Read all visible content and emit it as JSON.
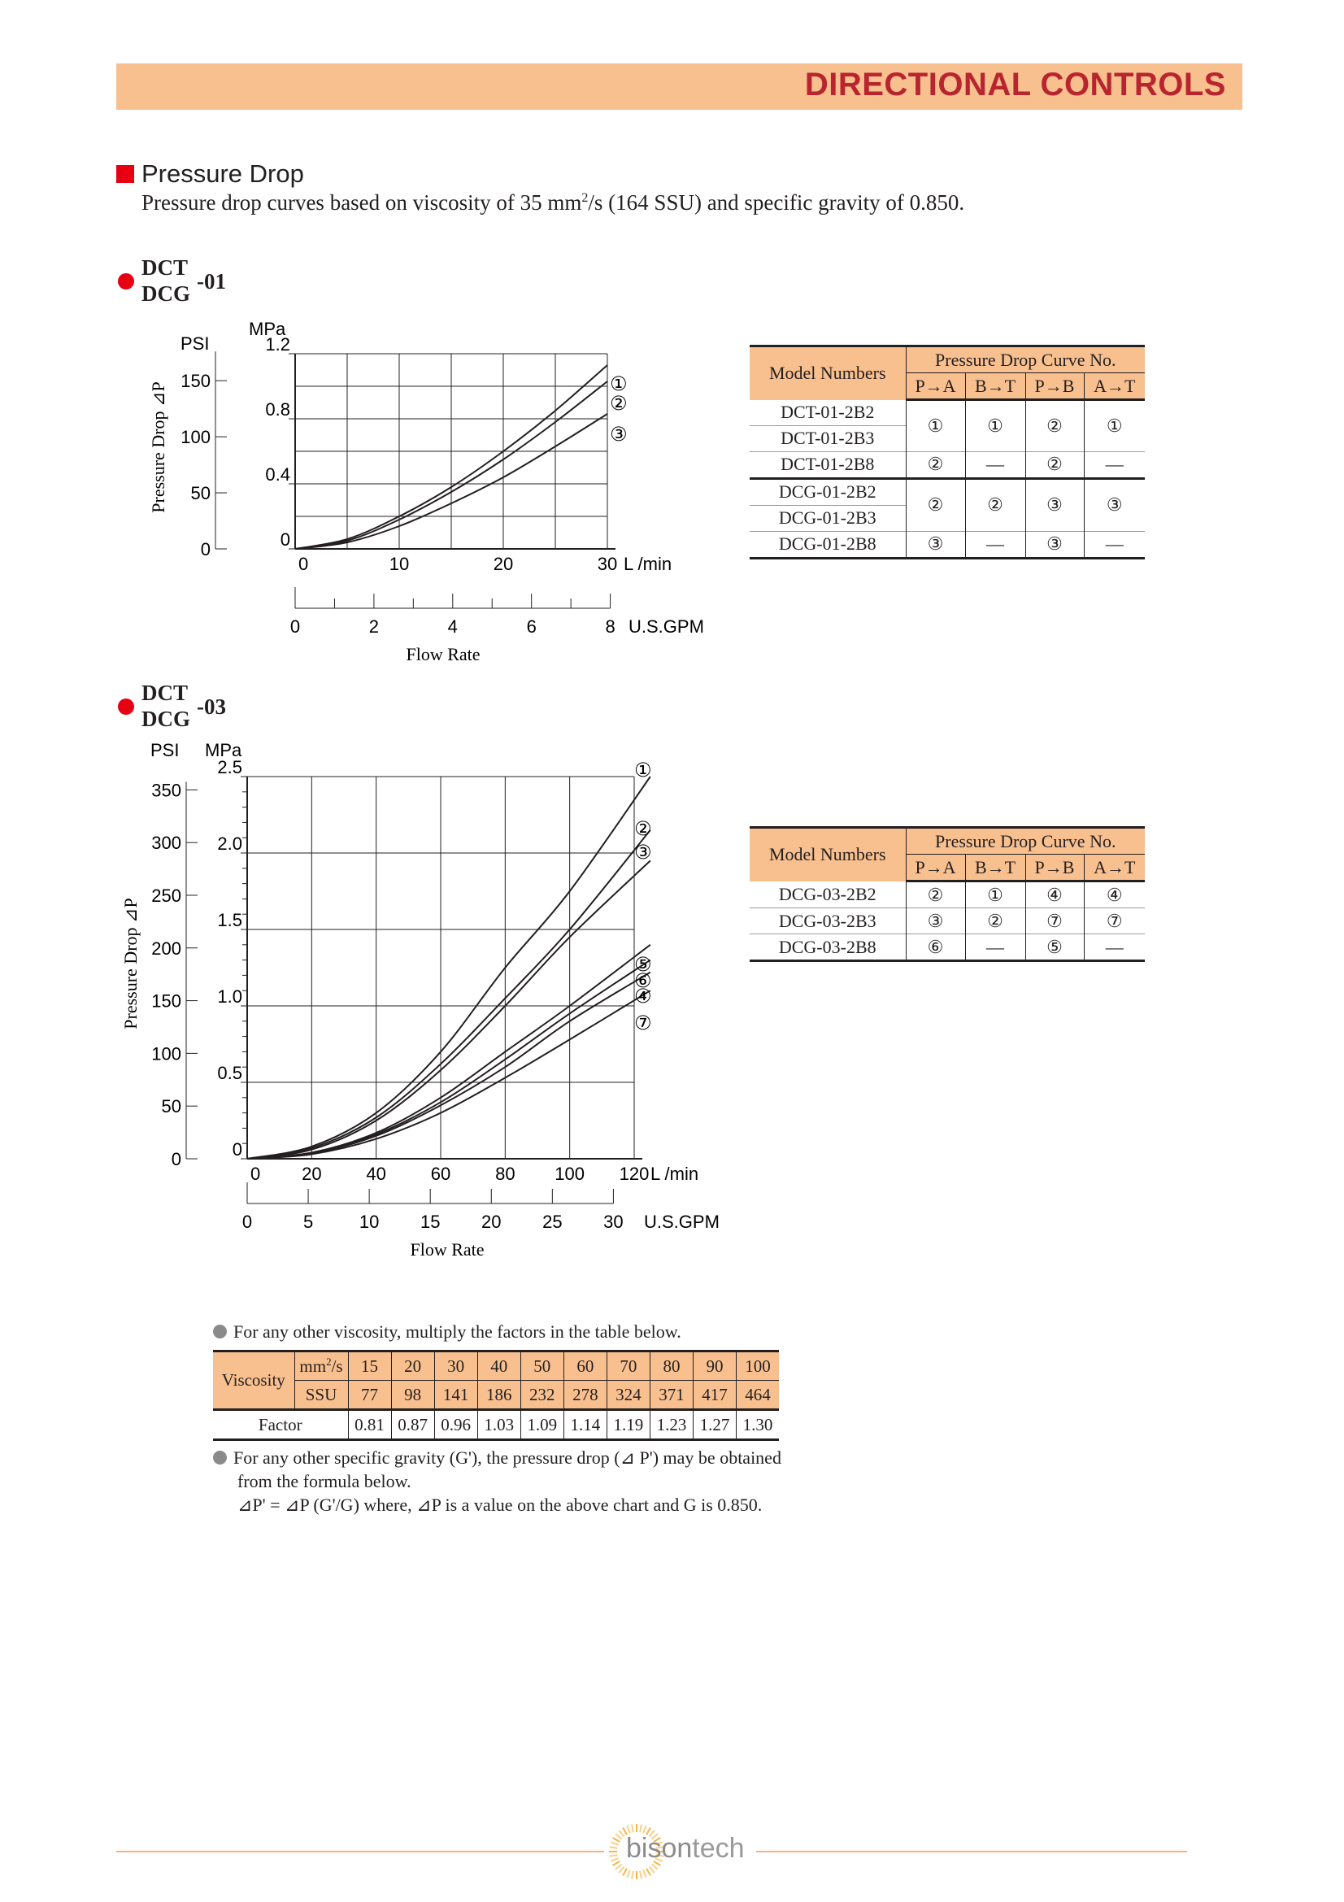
{
  "header": {
    "title": "DIRECTIONAL CONTROLS"
  },
  "section": {
    "title": "Pressure Drop",
    "desc_pre": "Pressure drop curves based on viscosity of 35 mm",
    "desc_sup": "2",
    "desc_post": "/s (164 SSU) and specific gravity of 0.850."
  },
  "chart1": {
    "model_top": "DCT",
    "model_bottom": "DCG",
    "model_suffix": "-01",
    "unit_psi": "PSI",
    "unit_mpa": "MPa",
    "unit_lmin": "L /min",
    "unit_gpm": "U.S.GPM",
    "ylabel": "Pressure Drop ⊿P",
    "xlabel": "Flow Rate",
    "psi_ticks": [
      "150",
      "100",
      "50",
      "0"
    ],
    "mpa_ticks": [
      "1.2",
      "0.8",
      "0.4",
      "0"
    ],
    "lmin_ticks": [
      "0",
      "10",
      "20",
      "30"
    ],
    "gpm_ticks": [
      "0",
      "2",
      "4",
      "6",
      "8"
    ],
    "curve_labels": [
      "①",
      "②",
      "③"
    ]
  },
  "chart2": {
    "model_top": "DCT",
    "model_bottom": "DCG",
    "model_suffix": "-03",
    "unit_psi": "PSI",
    "unit_mpa": "MPa",
    "unit_lmin": "L /min",
    "unit_gpm": "U.S.GPM",
    "ylabel": "Pressure Drop ⊿P",
    "xlabel": "Flow Rate",
    "psi_ticks": [
      "350",
      "300",
      "250",
      "200",
      "150",
      "100",
      "50",
      "0"
    ],
    "mpa_ticks": [
      "2.5",
      "2.0",
      "1.5",
      "1.0",
      "0.5",
      "0"
    ],
    "lmin_ticks": [
      "0",
      "20",
      "40",
      "60",
      "80",
      "100",
      "120"
    ],
    "gpm_ticks": [
      "0",
      "5",
      "10",
      "15",
      "20",
      "25",
      "30"
    ],
    "curve_labels": [
      "①",
      "②",
      "③",
      "⑤",
      "⑥",
      "④",
      "⑦"
    ]
  },
  "chart_data": [
    {
      "type": "line",
      "xlabel": "Flow Rate",
      "ylabel": "Pressure Drop ⊿P",
      "x_unit": "L/min",
      "y_unit": "MPa",
      "xlim": [
        0,
        30
      ],
      "ylim": [
        0,
        1.2
      ],
      "grid": true,
      "x": [
        0,
        5,
        10,
        15,
        20,
        25,
        30
      ],
      "series": [
        {
          "name": "①",
          "values": [
            0,
            0.06,
            0.2,
            0.38,
            0.6,
            0.85,
            1.13
          ]
        },
        {
          "name": "②",
          "values": [
            0,
            0.05,
            0.18,
            0.35,
            0.55,
            0.78,
            1.03
          ]
        },
        {
          "name": "③",
          "values": [
            0,
            0.04,
            0.14,
            0.28,
            0.44,
            0.63,
            0.83
          ]
        }
      ]
    },
    {
      "type": "line",
      "xlabel": "Flow Rate",
      "ylabel": "Pressure Drop ⊿P",
      "x_unit": "L/min",
      "y_unit": "MPa",
      "xlim": [
        0,
        120
      ],
      "ylim": [
        0,
        2.5
      ],
      "grid": true,
      "x": [
        0,
        20,
        40,
        60,
        80,
        100,
        125
      ],
      "series": [
        {
          "name": "①",
          "values": [
            0,
            0.08,
            0.3,
            0.7,
            1.25,
            1.75,
            2.5
          ]
        },
        {
          "name": "②",
          "values": [
            0,
            0.07,
            0.27,
            0.62,
            1.05,
            1.5,
            2.15
          ]
        },
        {
          "name": "③",
          "values": [
            0,
            0.06,
            0.25,
            0.58,
            1.0,
            1.45,
            1.95
          ]
        },
        {
          "name": "⑤",
          "values": [
            0,
            0.04,
            0.17,
            0.4,
            0.7,
            1.0,
            1.4
          ]
        },
        {
          "name": "⑥",
          "values": [
            0,
            0.04,
            0.16,
            0.37,
            0.65,
            0.95,
            1.3
          ]
        },
        {
          "name": "④",
          "values": [
            0,
            0.035,
            0.15,
            0.35,
            0.6,
            0.9,
            1.22
          ]
        },
        {
          "name": "⑦",
          "values": [
            0,
            0.03,
            0.13,
            0.3,
            0.53,
            0.78,
            1.1
          ]
        }
      ]
    }
  ],
  "table1": {
    "model_header": "Model Numbers",
    "curve_header": "Pressure Drop Curve No.",
    "cols": [
      "P→A",
      "B→T",
      "P→B",
      "A→T"
    ],
    "groups": [
      {
        "models": [
          "DCT-01-2B2",
          "DCT-01-2B3"
        ],
        "values": [
          "①",
          "①",
          "②",
          "①"
        ]
      },
      {
        "models": [
          "DCT-01-2B8"
        ],
        "values": [
          "②",
          "—",
          "②",
          "—"
        ]
      },
      {
        "models": [
          "DCG-01-2B2",
          "DCG-01-2B3"
        ],
        "values": [
          "②",
          "②",
          "③",
          "③"
        ]
      },
      {
        "models": [
          "DCG-01-2B8"
        ],
        "values": [
          "③",
          "—",
          "③",
          "—"
        ]
      }
    ]
  },
  "table2": {
    "model_header": "Model Numbers",
    "curve_header": "Pressure Drop Curve No.",
    "cols": [
      "P→A",
      "B→T",
      "P→B",
      "A→T"
    ],
    "rows": [
      {
        "model": "DCG-03-2B2",
        "values": [
          "②",
          "①",
          "④",
          "④"
        ]
      },
      {
        "model": "DCG-03-2B3",
        "values": [
          "③",
          "②",
          "⑦",
          "⑦"
        ]
      },
      {
        "model": "DCG-03-2B8",
        "values": [
          "⑥",
          "—",
          "⑤",
          "—"
        ]
      }
    ]
  },
  "viscosity": {
    "note1": "For any other viscosity, multiply the factors in the table below.",
    "label_viscosity": "Viscosity",
    "label_mm_pre": "mm",
    "label_mm_sup": "2",
    "label_mm_post": "/s",
    "label_ssu": "SSU",
    "label_factor": "Factor",
    "mm2s": [
      "15",
      "20",
      "30",
      "40",
      "50",
      "60",
      "70",
      "80",
      "90",
      "100"
    ],
    "ssu": [
      "77",
      "98",
      "141",
      "186",
      "232",
      "278",
      "324",
      "371",
      "417",
      "464"
    ],
    "factor": [
      "0.81",
      "0.87",
      "0.96",
      "1.03",
      "1.09",
      "1.14",
      "1.19",
      "1.23",
      "1.27",
      "1.30"
    ],
    "note2_line1": "For any other specific gravity (G'), the pressure drop (⊿ P') may be obtained",
    "note2_line2": "from the formula below.",
    "note2_line3": "⊿P' = ⊿P (G'/G) where, ⊿P is a value on the above chart and G is 0.850."
  },
  "footer": {
    "logo_bison": "bison",
    "logo_tech": "tech"
  },
  "colors": {
    "accent": "#f9c08f",
    "brand_red": "#b8252f",
    "marker_red": "#e60012"
  }
}
